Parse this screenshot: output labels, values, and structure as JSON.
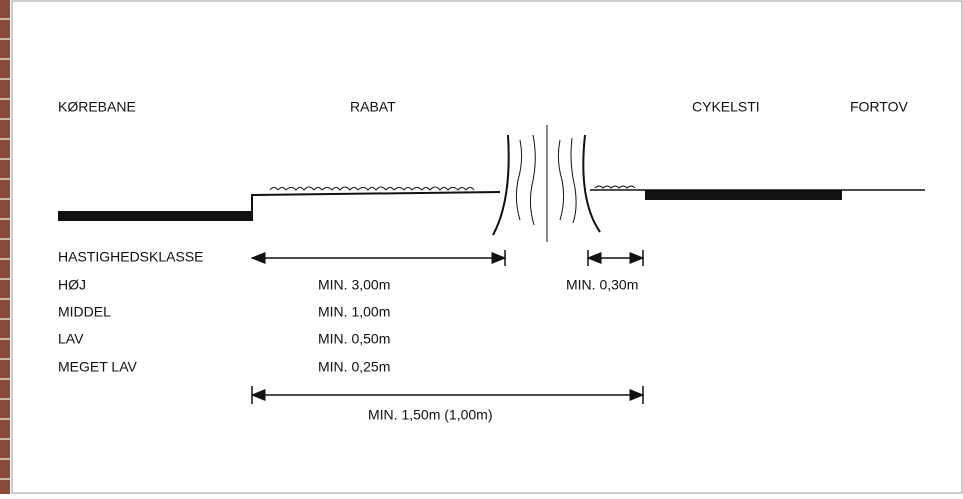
{
  "sections": [
    "KØREBANE",
    "RABAT",
    "CYKELSTI",
    "FORTOV"
  ],
  "speed_heading": "HASTIGHEDSKLASSE",
  "speed_classes": [
    {
      "label": "HØJ",
      "distance": "MIN. 3,00m"
    },
    {
      "label": "MIDDEL",
      "distance": "MIN. 1,00m"
    },
    {
      "label": "LAV",
      "distance": "MIN. 0,50m"
    },
    {
      "label": "MEGET LAV",
      "distance": "MIN. 0,25m"
    }
  ],
  "tree_clearance": "MIN. 0,30m",
  "total_width": "MIN. 1,50m (1,00m)"
}
